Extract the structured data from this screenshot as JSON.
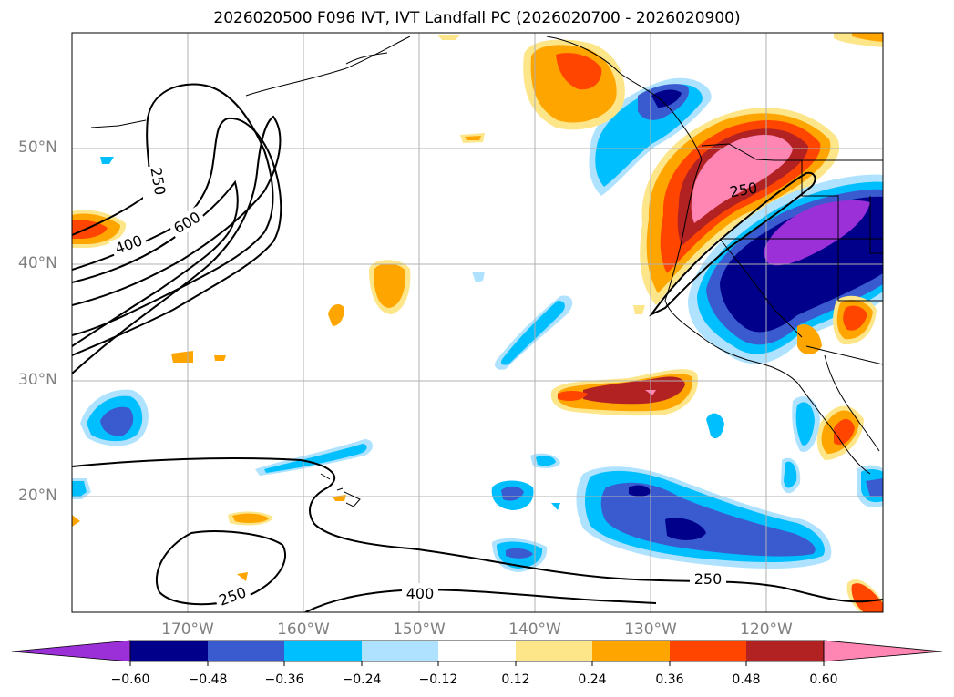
{
  "title": "2026020500 F096 IVT, IVT Landfall PC (2026020700 - 2026020900)",
  "map": {
    "lat_labels": [
      "50°N",
      "40°N",
      "30°N",
      "20°N"
    ],
    "lon_labels": [
      "170°W",
      "160°W",
      "150°W",
      "140°W",
      "130°W",
      "120°W"
    ],
    "extent": {
      "lon_min": -180,
      "lon_max": -110,
      "lat_min": 10,
      "lat_max": 60
    },
    "grid": true,
    "contour_labels": [
      "250",
      "400",
      "600",
      "250",
      "250",
      "250",
      "400"
    ]
  },
  "colorbar": {
    "tick_labels": [
      "−0.60",
      "−0.48",
      "−0.36",
      "−0.24",
      "−0.12",
      "0.12",
      "0.24",
      "0.36",
      "0.48",
      "0.60"
    ],
    "colors": [
      "#9b30d8",
      "#00008b",
      "#3a5bd0",
      "#00bfff",
      "#aee2ff",
      "#ffffff",
      "#fde68a",
      "#ffa500",
      "#ff4500",
      "#b22222",
      "#ff85b3"
    ],
    "extend": "both"
  },
  "colors": {
    "purple": "#9b30d8",
    "navy": "#00008b",
    "royal": "#3a5bd0",
    "sky": "#00bfff",
    "light": "#aee2ff",
    "yellow": "#fde68a",
    "orange": "#ffa500",
    "redorange": "#ff4500",
    "darkred": "#b22222",
    "pink": "#ff85b3"
  }
}
